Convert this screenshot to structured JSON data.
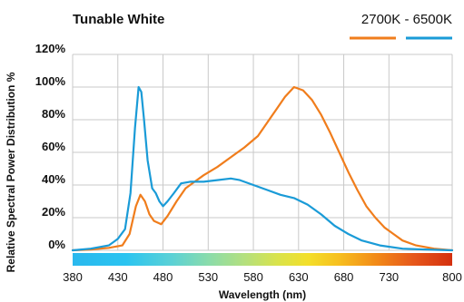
{
  "chart_data": {
    "type": "line",
    "title": "Tunable White",
    "legend": {
      "text_left": "2700K",
      "text_sep": " - ",
      "text_right": "6500K",
      "placement": "top-right"
    },
    "xlabel": "Wavelength (nm)",
    "ylabel": "Relative Spectral Power Distribution %",
    "xlim": [
      380,
      800
    ],
    "ylim": [
      0,
      120
    ],
    "x_ticks": [
      "380",
      "430",
      "480",
      "530",
      "580",
      "630",
      "680",
      "730",
      "800"
    ],
    "y_ticks": [
      "0%",
      "20%",
      "40%",
      "60%",
      "80%",
      "100%",
      "120%"
    ],
    "grid": true,
    "series": [
      {
        "name": "2700K",
        "color": "#f07d1c",
        "points": [
          [
            380,
            0
          ],
          [
            400,
            0.5
          ],
          [
            420,
            1.5
          ],
          [
            435,
            3
          ],
          [
            443,
            10
          ],
          [
            450,
            27
          ],
          [
            455,
            34
          ],
          [
            460,
            30
          ],
          [
            465,
            22
          ],
          [
            470,
            18
          ],
          [
            478,
            16
          ],
          [
            485,
            21
          ],
          [
            495,
            30
          ],
          [
            505,
            38
          ],
          [
            515,
            42
          ],
          [
            525,
            46
          ],
          [
            540,
            51
          ],
          [
            555,
            57
          ],
          [
            570,
            63
          ],
          [
            585,
            70
          ],
          [
            595,
            78
          ],
          [
            605,
            86
          ],
          [
            615,
            94
          ],
          [
            625,
            100
          ],
          [
            635,
            98
          ],
          [
            645,
            92
          ],
          [
            655,
            83
          ],
          [
            665,
            72
          ],
          [
            675,
            60
          ],
          [
            685,
            48
          ],
          [
            695,
            37
          ],
          [
            705,
            27
          ],
          [
            715,
            20
          ],
          [
            725,
            14
          ],
          [
            735,
            10
          ],
          [
            745,
            6
          ],
          [
            760,
            3
          ],
          [
            780,
            1
          ],
          [
            800,
            0
          ]
        ]
      },
      {
        "name": "6500K",
        "color": "#1a9bd7",
        "points": [
          [
            380,
            0
          ],
          [
            400,
            1
          ],
          [
            420,
            3
          ],
          [
            430,
            7
          ],
          [
            438,
            13
          ],
          [
            444,
            35
          ],
          [
            449,
            75
          ],
          [
            453,
            100
          ],
          [
            456,
            97
          ],
          [
            459,
            80
          ],
          [
            463,
            55
          ],
          [
            468,
            38
          ],
          [
            472,
            35
          ],
          [
            476,
            30
          ],
          [
            480,
            27
          ],
          [
            485,
            30
          ],
          [
            492,
            35
          ],
          [
            500,
            41
          ],
          [
            510,
            42
          ],
          [
            525,
            42
          ],
          [
            540,
            43
          ],
          [
            555,
            44
          ],
          [
            565,
            43
          ],
          [
            580,
            40
          ],
          [
            595,
            37
          ],
          [
            610,
            34
          ],
          [
            625,
            32
          ],
          [
            640,
            28
          ],
          [
            655,
            22
          ],
          [
            670,
            15
          ],
          [
            685,
            10
          ],
          [
            700,
            6
          ],
          [
            720,
            3
          ],
          [
            745,
            1
          ],
          [
            770,
            0.5
          ],
          [
            800,
            0
          ]
        ]
      }
    ],
    "spectrum_bar": {
      "stops": [
        {
          "offset": "0%",
          "color": "#2ab8ee"
        },
        {
          "offset": "14%",
          "color": "#2bc4f0"
        },
        {
          "offset": "26%",
          "color": "#5bd1d6"
        },
        {
          "offset": "36%",
          "color": "#8bdcaa"
        },
        {
          "offset": "46%",
          "color": "#b7e07a"
        },
        {
          "offset": "54%",
          "color": "#d9e34b"
        },
        {
          "offset": "62%",
          "color": "#f3df2a"
        },
        {
          "offset": "70%",
          "color": "#f7c01f"
        },
        {
          "offset": "80%",
          "color": "#f28a18"
        },
        {
          "offset": "90%",
          "color": "#e6561a"
        },
        {
          "offset": "100%",
          "color": "#d4300f"
        }
      ]
    }
  }
}
